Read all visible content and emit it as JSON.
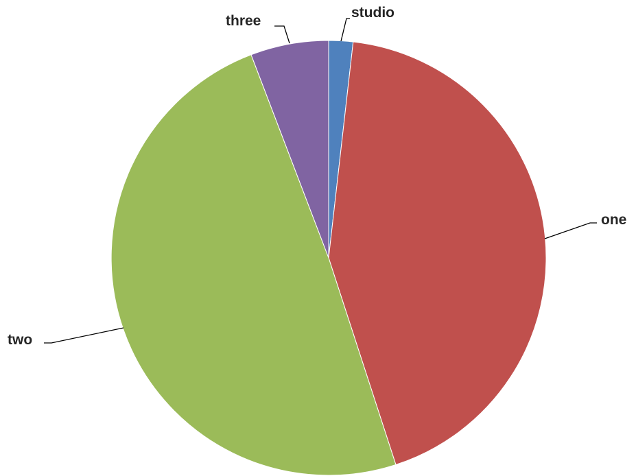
{
  "chart_data": {
    "type": "pie",
    "title": "",
    "start_angle_deg": 0,
    "direction": "clockwise",
    "legend": "none",
    "labels_outside": true,
    "slices": [
      {
        "label": "studio",
        "value": 1.8,
        "color": "#4F81BD"
      },
      {
        "label": "one",
        "value": 43.2,
        "color": "#C0504D"
      },
      {
        "label": "two",
        "value": 49.2,
        "color": "#9BBB59"
      },
      {
        "label": "three",
        "value": 5.8,
        "color": "#8064A2"
      }
    ]
  }
}
